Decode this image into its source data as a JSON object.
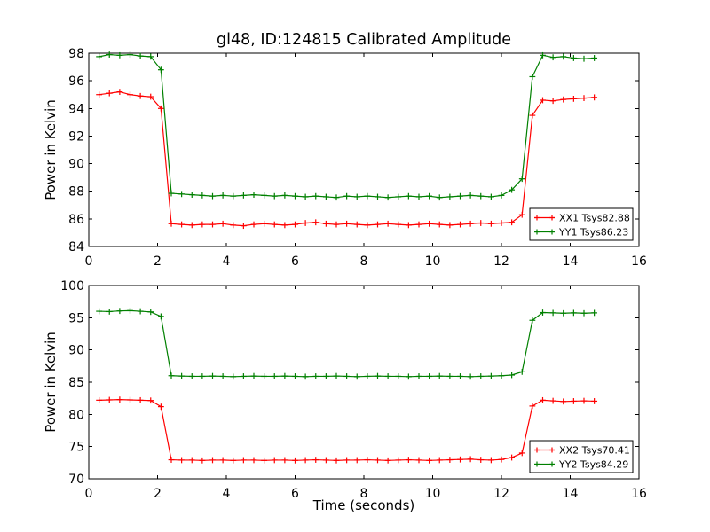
{
  "figure": {
    "background": "#ffffff",
    "frame_color": "#000000",
    "title": "gl48, ID:124815 Calibrated Amplitude"
  },
  "chart_data": [
    {
      "type": "line",
      "title": "gl48, ID:124815 Calibrated Amplitude",
      "xlabel": "",
      "ylabel": "Power in Kelvin",
      "xlim": [
        0,
        16
      ],
      "ylim": [
        84,
        98
      ],
      "xticks": [
        0,
        2,
        4,
        6,
        8,
        10,
        12,
        14,
        16
      ],
      "yticks": [
        84,
        86,
        88,
        90,
        92,
        94,
        96,
        98
      ],
      "grid": false,
      "legend_position": "lower right",
      "x": [
        0.3,
        0.6,
        0.9,
        1.2,
        1.5,
        1.8,
        2.1,
        2.4,
        2.7,
        3.0,
        3.3,
        3.6,
        3.9,
        4.2,
        4.5,
        4.8,
        5.1,
        5.4,
        5.7,
        6.0,
        6.3,
        6.6,
        6.9,
        7.2,
        7.5,
        7.8,
        8.1,
        8.4,
        8.7,
        9.0,
        9.3,
        9.6,
        9.9,
        10.2,
        10.5,
        10.8,
        11.1,
        11.4,
        11.7,
        12.0,
        12.3,
        12.6,
        12.9,
        13.2,
        13.5,
        13.8,
        14.1,
        14.4,
        14.7
      ],
      "series": [
        {
          "name": "XX1 Tsys82.88",
          "color": "#ff0000",
          "marker": "+",
          "values": [
            95.0,
            95.1,
            95.2,
            95.0,
            94.9,
            94.85,
            94.0,
            85.65,
            85.6,
            85.55,
            85.6,
            85.6,
            85.65,
            85.55,
            85.5,
            85.6,
            85.65,
            85.6,
            85.55,
            85.6,
            85.7,
            85.75,
            85.65,
            85.6,
            85.65,
            85.6,
            85.55,
            85.6,
            85.65,
            85.6,
            85.55,
            85.6,
            85.65,
            85.6,
            85.55,
            85.6,
            85.65,
            85.7,
            85.65,
            85.7,
            85.75,
            86.3,
            93.5,
            94.6,
            94.55,
            94.65,
            94.7,
            94.75,
            94.8
          ]
        },
        {
          "name": "YY1 Tsys86.23",
          "color": "#008000",
          "marker": "+",
          "values": [
            97.75,
            97.9,
            97.85,
            97.9,
            97.8,
            97.75,
            96.8,
            87.85,
            87.8,
            87.75,
            87.7,
            87.65,
            87.7,
            87.65,
            87.7,
            87.75,
            87.7,
            87.65,
            87.7,
            87.65,
            87.6,
            87.65,
            87.6,
            87.55,
            87.65,
            87.6,
            87.65,
            87.6,
            87.55,
            87.6,
            87.65,
            87.6,
            87.65,
            87.55,
            87.6,
            87.65,
            87.7,
            87.65,
            87.6,
            87.7,
            88.1,
            88.9,
            96.3,
            97.85,
            97.7,
            97.75,
            97.65,
            97.6,
            97.65
          ]
        }
      ]
    },
    {
      "type": "line",
      "title": "",
      "xlabel": "Time (seconds)",
      "ylabel": "Power in Kelvin",
      "xlim": [
        0,
        16
      ],
      "ylim": [
        70,
        100
      ],
      "xticks": [
        0,
        2,
        4,
        6,
        8,
        10,
        12,
        14,
        16
      ],
      "yticks": [
        70,
        75,
        80,
        85,
        90,
        95,
        100
      ],
      "grid": false,
      "legend_position": "lower right",
      "x": [
        0.3,
        0.6,
        0.9,
        1.2,
        1.5,
        1.8,
        2.1,
        2.4,
        2.7,
        3.0,
        3.3,
        3.6,
        3.9,
        4.2,
        4.5,
        4.8,
        5.1,
        5.4,
        5.7,
        6.0,
        6.3,
        6.6,
        6.9,
        7.2,
        7.5,
        7.8,
        8.1,
        8.4,
        8.7,
        9.0,
        9.3,
        9.6,
        9.9,
        10.2,
        10.5,
        10.8,
        11.1,
        11.4,
        11.7,
        12.0,
        12.3,
        12.6,
        12.9,
        13.2,
        13.5,
        13.8,
        14.1,
        14.4,
        14.7
      ],
      "series": [
        {
          "name": "XX2 Tsys70.41",
          "color": "#ff0000",
          "marker": "+",
          "values": [
            82.2,
            82.25,
            82.3,
            82.25,
            82.2,
            82.15,
            81.2,
            72.95,
            72.9,
            72.9,
            72.85,
            72.9,
            72.9,
            72.85,
            72.9,
            72.9,
            72.85,
            72.9,
            72.9,
            72.85,
            72.9,
            72.95,
            72.9,
            72.85,
            72.9,
            72.9,
            72.95,
            72.9,
            72.85,
            72.9,
            72.95,
            72.9,
            72.85,
            72.9,
            72.95,
            73.0,
            73.05,
            72.95,
            72.9,
            73.0,
            73.3,
            74.0,
            81.3,
            82.2,
            82.1,
            82.0,
            82.05,
            82.1,
            82.05
          ]
        },
        {
          "name": "YY2 Tsys84.29",
          "color": "#008000",
          "marker": "+",
          "values": [
            96.0,
            95.95,
            96.05,
            96.1,
            96.0,
            95.9,
            95.2,
            86.0,
            85.95,
            85.9,
            85.9,
            85.95,
            85.9,
            85.85,
            85.9,
            85.95,
            85.9,
            85.9,
            85.95,
            85.9,
            85.85,
            85.9,
            85.9,
            85.95,
            85.9,
            85.85,
            85.9,
            85.95,
            85.9,
            85.9,
            85.85,
            85.9,
            85.9,
            85.95,
            85.9,
            85.9,
            85.85,
            85.9,
            85.95,
            86.0,
            86.1,
            86.6,
            94.6,
            95.8,
            95.75,
            95.7,
            95.75,
            95.7,
            95.75
          ]
        }
      ]
    }
  ]
}
